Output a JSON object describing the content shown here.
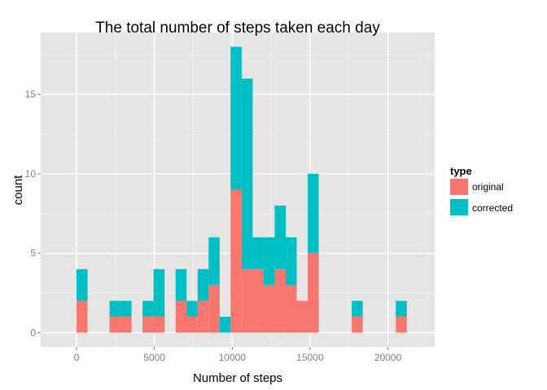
{
  "chart_data": {
    "type": "bar",
    "stacked": true,
    "title": "The total number of steps taken each day",
    "xlabel": "Number of steps",
    "ylabel": "count",
    "xlim": [
      -2300,
      23000
    ],
    "ylim": [
      -0.9,
      18.9
    ],
    "xticks": [
      0,
      5000,
      10000,
      15000,
      20000
    ],
    "yticks": [
      0,
      5,
      10,
      15
    ],
    "grid": true,
    "legend_position": "right",
    "legend_title": "type",
    "bin_width": 707,
    "bin_start": 0,
    "series": [
      {
        "name": "original",
        "color": "#F8766D",
        "values": [
          2,
          0,
          0,
          1,
          1,
          0,
          1,
          1,
          0,
          2,
          1,
          2,
          3,
          0,
          9,
          4,
          4,
          3,
          4,
          3,
          2,
          5,
          0,
          0,
          0,
          1,
          0,
          0,
          0,
          1,
          0
        ]
      },
      {
        "name": "corrected",
        "color": "#00BFC4",
        "values": [
          2,
          0,
          0,
          1,
          1,
          0,
          1,
          3,
          0,
          2,
          1,
          2,
          3,
          1,
          9,
          12,
          2,
          3,
          4,
          3,
          0,
          5,
          0,
          0,
          0,
          1,
          0,
          0,
          0,
          1,
          0
        ]
      }
    ],
    "extra_bins": [
      {
        "bin": 28,
        "original": 0,
        "corrected": 0
      }
    ]
  }
}
